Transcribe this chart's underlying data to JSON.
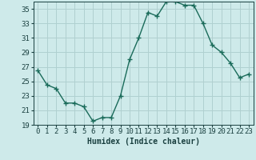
{
  "x": [
    0,
    1,
    2,
    3,
    4,
    5,
    6,
    7,
    8,
    9,
    10,
    11,
    12,
    13,
    14,
    15,
    16,
    17,
    18,
    19,
    20,
    21,
    22,
    23
  ],
  "y": [
    26.5,
    24.5,
    24.0,
    22.0,
    22.0,
    21.5,
    19.5,
    20.0,
    20.0,
    23.0,
    28.0,
    31.0,
    34.5,
    34.0,
    36.0,
    36.0,
    35.5,
    35.5,
    33.0,
    30.0,
    29.0,
    27.5,
    25.5,
    26.0
  ],
  "xlim": [
    -0.5,
    23.5
  ],
  "ylim": [
    19,
    36
  ],
  "yticks": [
    19,
    21,
    23,
    25,
    27,
    29,
    31,
    33,
    35
  ],
  "xticks": [
    0,
    1,
    2,
    3,
    4,
    5,
    6,
    7,
    8,
    9,
    10,
    11,
    12,
    13,
    14,
    15,
    16,
    17,
    18,
    19,
    20,
    21,
    22,
    23
  ],
  "xlabel": "Humidex (Indice chaleur)",
  "line_color": "#1a6b5a",
  "marker": "+",
  "marker_size": 4,
  "marker_lw": 1.0,
  "line_width": 1.0,
  "bg_color": "#ceeaea",
  "grid_color": "#b0d0d0",
  "label_color": "#1a4040",
  "xlabel_fontsize": 7,
  "tick_fontsize": 6.5
}
